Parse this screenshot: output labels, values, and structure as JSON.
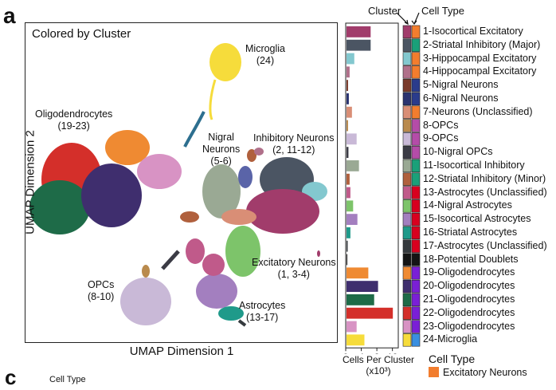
{
  "panel_letter": "a",
  "panel_letter_c": "c",
  "umap": {
    "title": "Colored by Cluster",
    "xlabel": "UMAP Dimension 1",
    "ylabel": "UMAP Dimension 2",
    "labels": [
      {
        "l1": "Microglia",
        "l2": "(24)"
      },
      {
        "l1": "Oligodendrocytes",
        "l2": "(19-23)"
      },
      {
        "l1": "Nigral",
        "l2": "Neurons",
        "l3": "(5-6)"
      },
      {
        "l1": "Inhibitory Neurons",
        "l2": "(2, 11-12)"
      },
      {
        "l1": "Excitatory Neurons",
        "l2": "(1, 3-4)"
      },
      {
        "l1": "OPCs",
        "l2": "(8-10)"
      },
      {
        "l1": "Astrocytes",
        "l2": "(13-17)"
      }
    ]
  },
  "headers": {
    "cluster": "Cluster",
    "celltype": "Cell Type"
  },
  "chart_data": {
    "type": "bar",
    "orientation": "horizontal",
    "xlabel": "Cells Per Cluster",
    "xunit": "(x10³)",
    "xticks": [
      0,
      4,
      8,
      12
    ],
    "xlim": [
      0,
      13.5
    ],
    "categories": [
      "1-Isocortical Excitatory",
      "2-Striatal Inhibitory (Major)",
      "3-Hippocampal Excitatory",
      "4-Hippocampal Excitatory",
      "5-Nigral Neurons",
      "6-Nigral Neurons",
      "7-Neurons (Unclassified)",
      "8-OPCs",
      "9-OPCs",
      "10-Nigral OPCs",
      "11-Isocortical Inhibitory",
      "12-Striatal Inhibitory (Minor)",
      "13-Astrocytes (Unclassified)",
      "14-Nigral Astrocytes",
      "15-Isocortical Astrocytes",
      "16-Striatal Astrocytes",
      "17-Astrocytes (Unclassified)",
      "18-Potential Doublets",
      "19-Oligodendrocytes",
      "20-Oligodendrocytes",
      "21-Oligodendrocytes",
      "22-Oligodendrocytes",
      "23-Oligodendrocytes",
      "24-Microglia"
    ],
    "values": [
      6.2,
      6.2,
      2.0,
      0.8,
      0.4,
      0.6,
      1.4,
      0.4,
      2.6,
      0.5,
      3.2,
      0.8,
      1.0,
      1.7,
      2.8,
      1.0,
      0.3,
      0.2,
      5.6,
      8.1,
      7.1,
      11.9,
      2.6,
      4.6
    ],
    "cluster_colors": [
      "#a13c6b",
      "#4b5563",
      "#83c8cf",
      "#b0708a",
      "#7a3a2a",
      "#2a3370",
      "#d98e76",
      "#b98a4d",
      "#c9b9d7",
      "#3b3b45",
      "#9aa994",
      "#b0603d",
      "#c05a8a",
      "#7dc46a",
      "#a37fbf",
      "#1f9a8a",
      "#353a3e",
      "#141414",
      "#ef8a32",
      "#3f2e6e",
      "#1e6b48",
      "#d42f2a",
      "#d893c4",
      "#f6dc3b"
    ],
    "celltype_colors": [
      "#f27d2e",
      "#1aa079",
      "#f27d2e",
      "#f27d2e",
      "#2a3c8c",
      "#2a3c8c",
      "#f27d2e",
      "#b44ca8",
      "#b44ca8",
      "#b44ca8",
      "#1aa079",
      "#1aa079",
      "#d8001f",
      "#d8001f",
      "#d8001f",
      "#d8001f",
      "#d8001f",
      "#141414",
      "#7a1fd6",
      "#7a1fd6",
      "#7a1fd6",
      "#7a1fd6",
      "#7a1fd6",
      "#3a8fe0"
    ]
  },
  "celltype_legend": {
    "title": "Cell Type",
    "items": [
      {
        "label": "Excitatory Neurons",
        "color": "#f27d2e"
      }
    ]
  },
  "panel_c": {
    "celltype_label": "Cell Type"
  }
}
